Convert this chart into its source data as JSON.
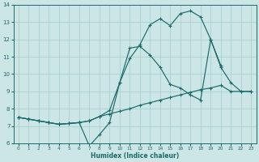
{
  "xlabel": "Humidex (Indice chaleur)",
  "bg_color": "#cce5e5",
  "grid_color": "#aacfcf",
  "line_color": "#1a6b6b",
  "xlim": [
    -0.5,
    23.5
  ],
  "ylim": [
    6,
    14
  ],
  "xticks": [
    0,
    1,
    2,
    3,
    4,
    5,
    6,
    7,
    8,
    9,
    10,
    11,
    12,
    13,
    14,
    15,
    16,
    17,
    18,
    19,
    20,
    21,
    22,
    23
  ],
  "yticks": [
    6,
    7,
    8,
    9,
    10,
    11,
    12,
    13,
    14
  ],
  "series": [
    {
      "x": [
        0,
        1,
        2,
        3,
        4,
        5,
        6,
        7,
        8,
        9,
        10,
        11,
        12,
        13,
        14,
        15,
        16,
        17,
        18,
        19,
        20,
        21,
        22,
        23
      ],
      "y": [
        7.5,
        7.4,
        7.3,
        7.2,
        7.1,
        7.15,
        7.2,
        5.85,
        6.5,
        7.2,
        9.5,
        11.5,
        11.6,
        11.1,
        10.4,
        9.4,
        9.2,
        8.8,
        8.5,
        12.0,
        10.5,
        null,
        null,
        null
      ]
    },
    {
      "x": [
        0,
        1,
        2,
        3,
        4,
        5,
        6,
        7,
        8,
        9,
        10,
        11,
        12,
        13,
        14,
        15,
        16,
        17,
        18,
        19,
        20,
        21,
        22,
        23
      ],
      "y": [
        7.5,
        7.4,
        7.3,
        7.2,
        7.1,
        7.15,
        7.2,
        7.3,
        7.55,
        7.7,
        7.85,
        8.0,
        8.2,
        8.35,
        8.5,
        8.65,
        8.8,
        8.95,
        9.1,
        9.2,
        9.35,
        9.0,
        9.0,
        9.0
      ]
    },
    {
      "x": [
        0,
        1,
        2,
        3,
        4,
        5,
        6,
        7,
        8,
        9,
        10,
        11,
        12,
        13,
        14,
        15,
        16,
        17,
        18,
        19,
        20,
        21,
        22,
        23
      ],
      "y": [
        7.5,
        7.4,
        7.3,
        7.2,
        7.1,
        7.15,
        7.2,
        7.3,
        7.55,
        7.9,
        9.5,
        10.9,
        11.7,
        12.85,
        13.2,
        12.8,
        13.5,
        13.65,
        13.3,
        12.0,
        10.4,
        9.5,
        9.0,
        9.0
      ]
    }
  ]
}
